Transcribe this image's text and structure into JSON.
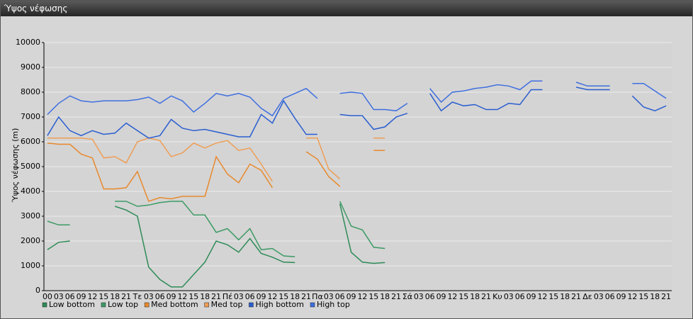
{
  "window": {
    "title": "Ύψος νέφωσης"
  },
  "chart_data": {
    "type": "line",
    "ylabel": "Ύψος νέφωσης (m)",
    "categories": [
      "00",
      "03",
      "06",
      "09",
      "12",
      "15",
      "18",
      "21",
      "Τε",
      "03",
      "06",
      "09",
      "12",
      "15",
      "18",
      "21",
      "Πέ",
      "03",
      "06",
      "09",
      "12",
      "15",
      "18",
      "21",
      "Πα",
      "03",
      "06",
      "09",
      "12",
      "15",
      "18",
      "21",
      "Σά",
      "03",
      "06",
      "09",
      "12",
      "15",
      "18",
      "21",
      "Κυ",
      "03",
      "06",
      "09",
      "12",
      "15",
      "18",
      "21",
      "Δε",
      "03",
      "06",
      "09",
      "12",
      "15",
      "18",
      "21"
    ],
    "series": [
      {
        "name": "Low bottom",
        "color": "#2e8b57",
        "values": [
          1650,
          1950,
          2000,
          null,
          null,
          null,
          3400,
          3250,
          3000,
          950,
          450,
          150,
          150,
          650,
          1150,
          2000,
          1850,
          1550,
          2100,
          1500,
          1350,
          1150,
          1130,
          null,
          null,
          null,
          3500,
          1550,
          1150,
          1100,
          1130,
          null,
          null,
          null,
          null,
          null,
          null,
          null,
          null,
          null,
          null,
          null,
          null,
          null,
          null,
          null,
          null,
          null,
          null,
          null,
          null,
          null,
          null,
          null,
          null,
          null
        ]
      },
      {
        "name": "Low top",
        "color": "#3c9a64",
        "values": [
          2800,
          2650,
          2650,
          null,
          null,
          null,
          3600,
          3600,
          3400,
          3450,
          3550,
          3600,
          3600,
          3050,
          3050,
          2350,
          2500,
          2050,
          2500,
          1650,
          1700,
          1400,
          1370,
          null,
          null,
          null,
          3600,
          2600,
          2450,
          1750,
          1700,
          null,
          null,
          null,
          null,
          null,
          null,
          null,
          null,
          null,
          null,
          null,
          null,
          null,
          null,
          null,
          null,
          null,
          null,
          null,
          null,
          null,
          null,
          null,
          null,
          null
        ]
      },
      {
        "name": "Med bottom",
        "color": "#e8892c",
        "values": [
          5950,
          5900,
          5900,
          5500,
          5350,
          4100,
          4100,
          4150,
          4800,
          3600,
          3750,
          3700,
          3800,
          3800,
          3800,
          5400,
          4700,
          4350,
          5100,
          4850,
          4150,
          null,
          null,
          5600,
          5300,
          4600,
          4200,
          null,
          null,
          5650,
          5650,
          null,
          null,
          null,
          null,
          null,
          null,
          null,
          null,
          null,
          null,
          null,
          null,
          null,
          null,
          null,
          null,
          null,
          null,
          null,
          null,
          null,
          null,
          null,
          null,
          null
        ]
      },
      {
        "name": "Med top",
        "color": "#ee9e55",
        "values": [
          6150,
          6150,
          6150,
          6150,
          6100,
          5350,
          5400,
          5150,
          6000,
          6150,
          6050,
          5400,
          5550,
          5950,
          5750,
          5950,
          6050,
          5650,
          5750,
          5100,
          4400,
          null,
          null,
          6150,
          6150,
          4900,
          4500,
          null,
          null,
          6150,
          6150,
          null,
          null,
          null,
          null,
          null,
          null,
          null,
          null,
          null,
          null,
          null,
          null,
          null,
          null,
          null,
          null,
          null,
          null,
          null,
          null,
          null,
          null,
          null,
          null,
          null
        ]
      },
      {
        "name": "High bottom",
        "color": "#2a5ed0",
        "values": [
          6250,
          7000,
          6450,
          6250,
          6450,
          6300,
          6350,
          6750,
          6450,
          6150,
          6250,
          6900,
          6550,
          6450,
          6500,
          6400,
          6300,
          6200,
          6200,
          7100,
          6750,
          7650,
          6950,
          6300,
          6300,
          null,
          7100,
          7050,
          7050,
          6500,
          6600,
          7000,
          7150,
          null,
          7950,
          7250,
          7600,
          7450,
          7500,
          7300,
          7300,
          7550,
          7500,
          8100,
          8100,
          null,
          null,
          8200,
          8100,
          8100,
          8100,
          null,
          7850,
          7400,
          7250,
          7450
        ]
      },
      {
        "name": "High top",
        "color": "#3f6fe0",
        "values": [
          7100,
          7550,
          7850,
          7650,
          7600,
          7650,
          7650,
          7650,
          7700,
          7800,
          7550,
          7850,
          7650,
          7200,
          7550,
          7950,
          7850,
          7950,
          7800,
          7350,
          7050,
          7750,
          7950,
          8150,
          7750,
          null,
          7950,
          8000,
          7950,
          7300,
          7300,
          7250,
          7550,
          null,
          8150,
          7600,
          8000,
          8050,
          8150,
          8200,
          8300,
          8250,
          8100,
          8450,
          8450,
          null,
          null,
          8400,
          8250,
          8250,
          8250,
          null,
          8350,
          8350,
          8050,
          7750
        ]
      }
    ],
    "ylim": [
      0,
      10000
    ],
    "yticks": [
      0,
      1000,
      2000,
      3000,
      4000,
      5000,
      6000,
      7000,
      8000,
      9000,
      10000
    ],
    "grid": true
  }
}
